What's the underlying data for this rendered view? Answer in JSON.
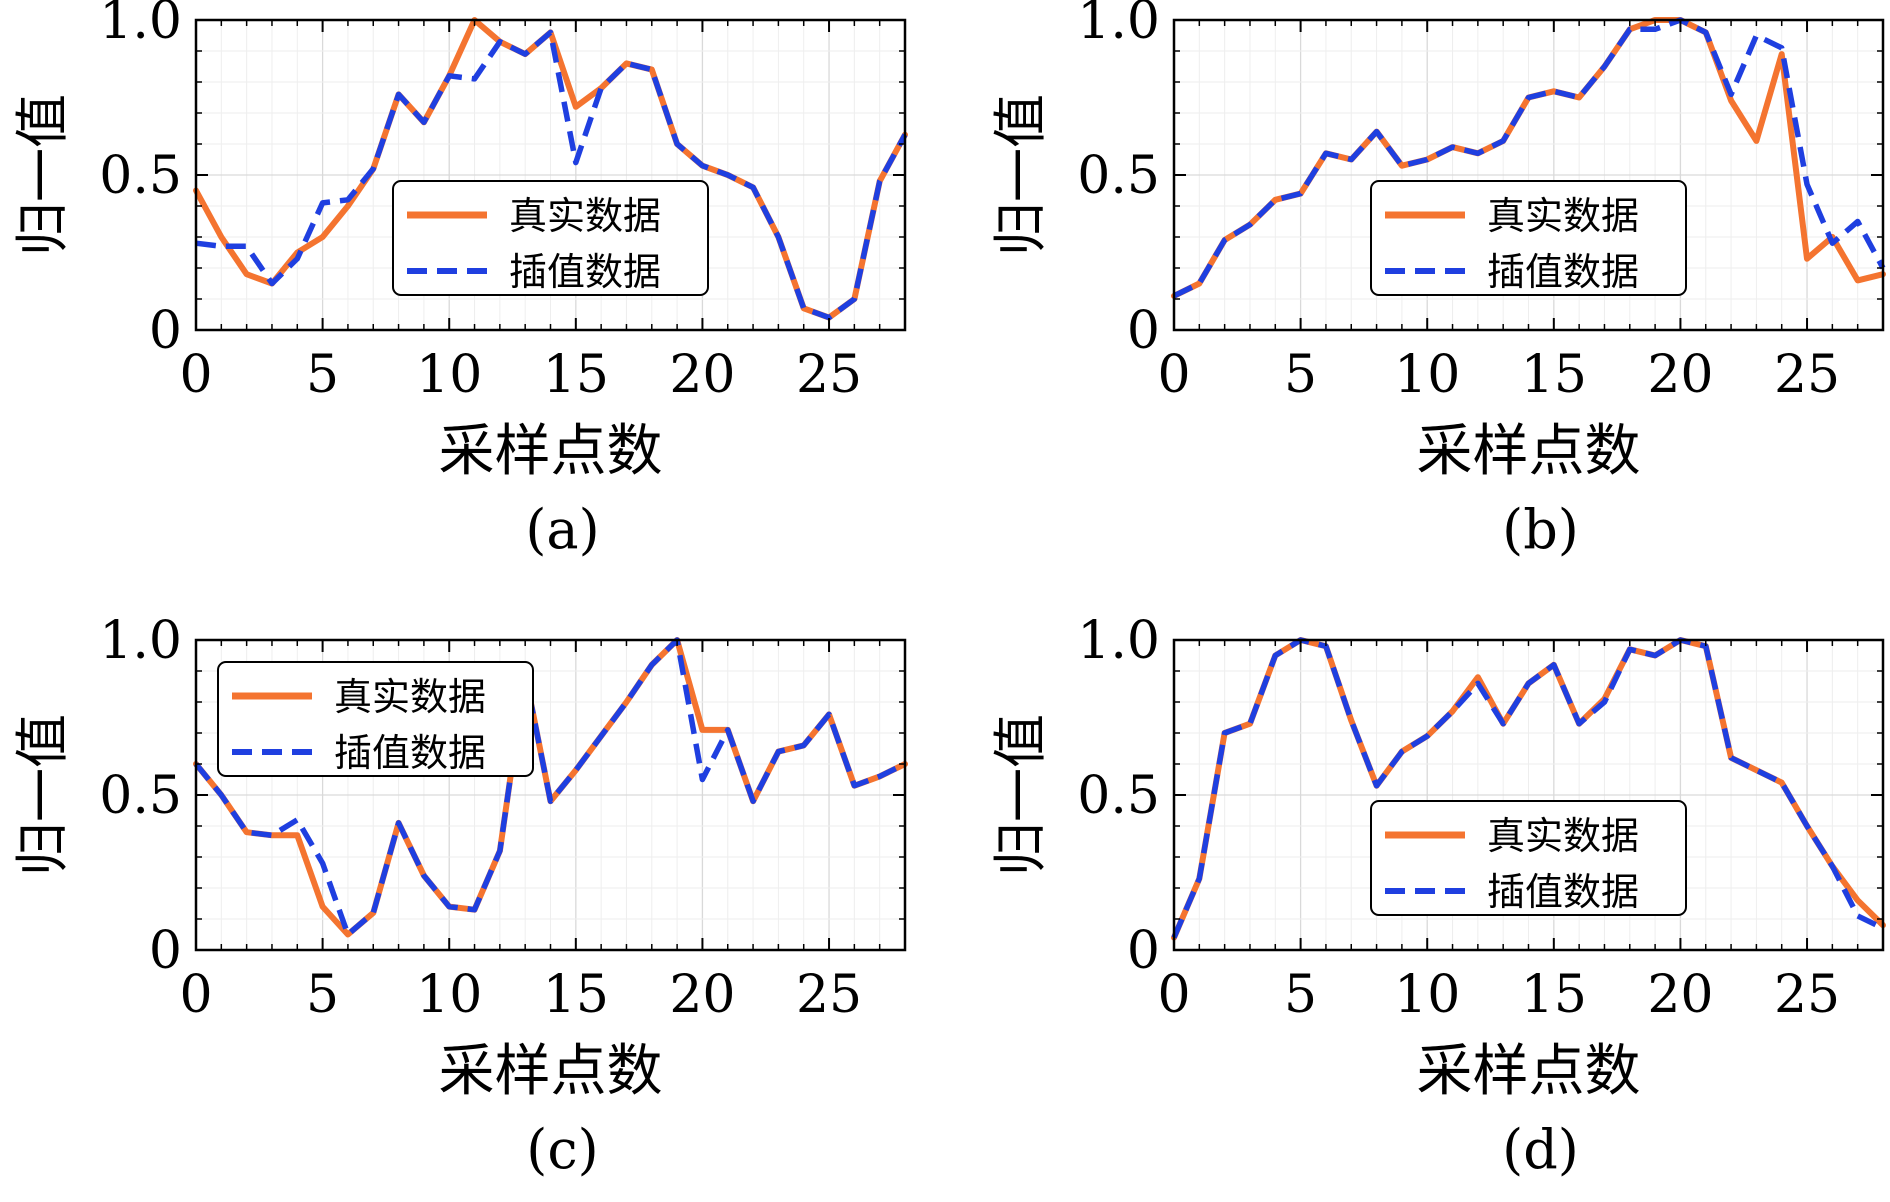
{
  "chart_data": [
    {
      "panel_label": "(a)",
      "type": "line",
      "xlabel": "采样点数",
      "ylabel": "归一值",
      "xlim": [
        0,
        28
      ],
      "ylim": [
        0,
        1.0
      ],
      "xticks": [
        "0",
        "5",
        "10",
        "15",
        "20",
        "25"
      ],
      "yticks": [
        "0",
        "0.5",
        "1.0"
      ],
      "grid": true,
      "legend_position": "lower-right",
      "series": [
        {
          "name": "真实数据",
          "color": "#f47430",
          "style": "solid",
          "x": [
            0,
            1,
            2,
            3,
            4,
            5,
            6,
            7,
            8,
            9,
            10,
            11,
            12,
            13,
            14,
            15,
            16,
            17,
            18,
            19,
            20,
            21,
            22,
            23,
            24,
            25,
            26,
            27,
            28
          ],
          "y": [
            0.45,
            0.3,
            0.18,
            0.15,
            0.25,
            0.3,
            0.4,
            0.52,
            0.76,
            0.67,
            0.82,
            1.0,
            0.93,
            0.89,
            0.96,
            0.72,
            0.78,
            0.86,
            0.84,
            0.6,
            0.53,
            0.5,
            0.46,
            0.3,
            0.07,
            0.04,
            0.1,
            0.48,
            0.63
          ]
        },
        {
          "name": "插值数据",
          "color": "#1f3fe0",
          "style": "dashed",
          "x": [
            0,
            1,
            2,
            3,
            4,
            5,
            6,
            7,
            8,
            9,
            10,
            11,
            12,
            13,
            14,
            15,
            16,
            17,
            18,
            19,
            20,
            21,
            22,
            23,
            24,
            25,
            26,
            27,
            28
          ],
          "y": [
            0.28,
            0.27,
            0.27,
            0.15,
            0.23,
            0.41,
            0.42,
            0.52,
            0.76,
            0.67,
            0.82,
            0.81,
            0.93,
            0.89,
            0.96,
            0.54,
            0.78,
            0.86,
            0.84,
            0.6,
            0.53,
            0.5,
            0.46,
            0.3,
            0.07,
            0.04,
            0.1,
            0.48,
            0.63
          ]
        }
      ]
    },
    {
      "panel_label": "(b)",
      "type": "line",
      "xlabel": "采样点数",
      "ylabel": "归一值",
      "xlim": [
        0,
        28
      ],
      "ylim": [
        0,
        1.0
      ],
      "xticks": [
        "0",
        "5",
        "10",
        "15",
        "20",
        "25"
      ],
      "yticks": [
        "0",
        "0.5",
        "1.0"
      ],
      "grid": true,
      "legend_position": "lower-right",
      "series": [
        {
          "name": "真实数据",
          "color": "#f47430",
          "style": "solid",
          "x": [
            0,
            1,
            2,
            3,
            4,
            5,
            6,
            7,
            8,
            9,
            10,
            11,
            12,
            13,
            14,
            15,
            16,
            17,
            18,
            19,
            20,
            21,
            22,
            23,
            24,
            25,
            26,
            27,
            28
          ],
          "y": [
            0.11,
            0.15,
            0.29,
            0.34,
            0.42,
            0.44,
            0.57,
            0.55,
            0.64,
            0.53,
            0.55,
            0.59,
            0.57,
            0.61,
            0.75,
            0.77,
            0.75,
            0.85,
            0.97,
            1.0,
            1.0,
            0.96,
            0.74,
            0.61,
            0.89,
            0.23,
            0.3,
            0.16,
            0.18
          ]
        },
        {
          "name": "插值数据",
          "color": "#1f3fe0",
          "style": "dashed",
          "x": [
            0,
            1,
            2,
            3,
            4,
            5,
            6,
            7,
            8,
            9,
            10,
            11,
            12,
            13,
            14,
            15,
            16,
            17,
            18,
            19,
            20,
            21,
            22,
            23,
            24,
            25,
            26,
            27,
            28
          ],
          "y": [
            0.11,
            0.15,
            0.29,
            0.34,
            0.42,
            0.44,
            0.57,
            0.55,
            0.64,
            0.53,
            0.55,
            0.59,
            0.57,
            0.61,
            0.75,
            0.77,
            0.75,
            0.85,
            0.97,
            0.97,
            1.0,
            0.96,
            0.76,
            0.95,
            0.91,
            0.47,
            0.28,
            0.35,
            0.2
          ]
        }
      ]
    },
    {
      "panel_label": "(c)",
      "type": "line",
      "xlabel": "采样点数",
      "ylabel": "归一值",
      "xlim": [
        0,
        28
      ],
      "ylim": [
        0,
        1.0
      ],
      "xticks": [
        "0",
        "5",
        "10",
        "15",
        "20",
        "25"
      ],
      "yticks": [
        "0",
        "0.5",
        "1.0"
      ],
      "grid": true,
      "legend_position": "upper-left",
      "series": [
        {
          "name": "真实数据",
          "color": "#f47430",
          "style": "solid",
          "x": [
            0,
            1,
            2,
            3,
            4,
            5,
            6,
            7,
            8,
            9,
            10,
            11,
            12,
            13,
            14,
            15,
            16,
            17,
            18,
            19,
            20,
            21,
            22,
            23,
            24,
            25,
            26,
            27,
            28
          ],
          "y": [
            0.6,
            0.5,
            0.38,
            0.37,
            0.37,
            0.14,
            0.05,
            0.12,
            0.41,
            0.24,
            0.14,
            0.13,
            0.32,
            0.89,
            0.48,
            0.58,
            0.69,
            0.8,
            0.92,
            1.0,
            0.71,
            0.71,
            0.48,
            0.64,
            0.66,
            0.76,
            0.53,
            0.56,
            0.6
          ]
        },
        {
          "name": "插值数据",
          "color": "#1f3fe0",
          "style": "dashed",
          "x": [
            0,
            1,
            2,
            3,
            4,
            5,
            6,
            7,
            8,
            9,
            10,
            11,
            12,
            13,
            14,
            15,
            16,
            17,
            18,
            19,
            20,
            21,
            22,
            23,
            24,
            25,
            26,
            27,
            28
          ],
          "y": [
            0.6,
            0.5,
            0.38,
            0.37,
            0.42,
            0.28,
            0.05,
            0.12,
            0.41,
            0.24,
            0.14,
            0.13,
            0.32,
            0.89,
            0.48,
            0.58,
            0.69,
            0.8,
            0.92,
            1.0,
            0.55,
            0.71,
            0.48,
            0.64,
            0.66,
            0.76,
            0.53,
            0.56,
            0.6
          ]
        }
      ]
    },
    {
      "panel_label": "(d)",
      "type": "line",
      "xlabel": "采样点数",
      "ylabel": "归一值",
      "xlim": [
        0,
        28
      ],
      "ylim": [
        0,
        1.0
      ],
      "xticks": [
        "0",
        "5",
        "10",
        "15",
        "20",
        "25"
      ],
      "yticks": [
        "0",
        "0.5",
        "1.0"
      ],
      "grid": true,
      "legend_position": "lower-right",
      "series": [
        {
          "name": "真实数据",
          "color": "#f47430",
          "style": "solid",
          "x": [
            0,
            1,
            2,
            3,
            4,
            5,
            6,
            7,
            8,
            9,
            10,
            11,
            12,
            13,
            14,
            15,
            16,
            17,
            18,
            19,
            20,
            21,
            22,
            23,
            24,
            25,
            26,
            27,
            28
          ],
          "y": [
            0.04,
            0.23,
            0.7,
            0.73,
            0.95,
            1.0,
            0.98,
            0.74,
            0.53,
            0.64,
            0.69,
            0.77,
            0.88,
            0.73,
            0.86,
            0.92,
            0.73,
            0.81,
            0.97,
            0.95,
            1.0,
            0.98,
            0.62,
            0.58,
            0.54,
            0.4,
            0.27,
            0.16,
            0.08
          ]
        },
        {
          "name": "插值数据",
          "color": "#1f3fe0",
          "style": "dashed",
          "x": [
            0,
            1,
            2,
            3,
            4,
            5,
            6,
            7,
            8,
            9,
            10,
            11,
            12,
            13,
            14,
            15,
            16,
            17,
            18,
            19,
            20,
            21,
            22,
            23,
            24,
            25,
            26,
            27,
            28
          ],
          "y": [
            0.04,
            0.23,
            0.7,
            0.73,
            0.95,
            1.0,
            0.98,
            0.74,
            0.53,
            0.64,
            0.69,
            0.77,
            0.86,
            0.73,
            0.86,
            0.92,
            0.73,
            0.8,
            0.97,
            0.95,
            1.0,
            0.98,
            0.62,
            0.58,
            0.54,
            0.4,
            0.27,
            0.11,
            0.07
          ]
        }
      ]
    }
  ]
}
